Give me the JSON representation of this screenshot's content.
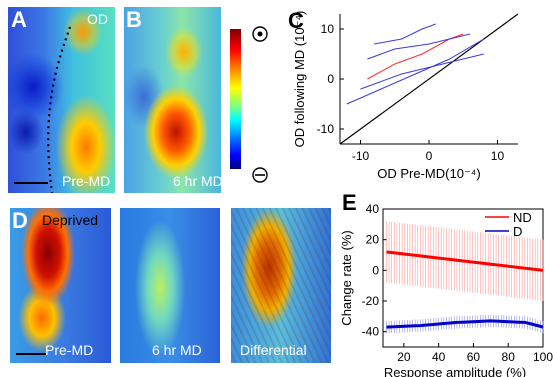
{
  "panels": {
    "A": {
      "letter": "A",
      "top_label": "OD",
      "bottom_label": "Pre-MD"
    },
    "B": {
      "letter": "B",
      "bottom_label": "6 hr MD"
    },
    "C": {
      "letter": "C"
    },
    "D": {
      "letter": "D",
      "labels": [
        "Deprived",
        "Pre-MD",
        "6 hr MD",
        "Differential"
      ]
    },
    "E": {
      "letter": "E"
    }
  },
  "colorbar": {
    "top_symbol": "+",
    "bottom_symbol": "−",
    "colors": [
      "#7f0000",
      "#ff0000",
      "#ff8000",
      "#ffff00",
      "#80ff80",
      "#00ffff",
      "#0080ff",
      "#0000ff",
      "#00007f"
    ]
  },
  "chart_data": [
    {
      "type": "line",
      "panel": "C",
      "xlabel": "OD Pre-MD(10⁻⁴)",
      "ylabel": "OD following MD (10⁻⁴)",
      "xlim": [
        -13,
        13
      ],
      "ylim": [
        -13,
        13
      ],
      "xticks": [
        -10,
        0,
        10
      ],
      "yticks": [
        -10,
        0,
        10
      ],
      "series": [
        {
          "color": "#000000",
          "x": [
            -13,
            13
          ],
          "y": [
            -13,
            13
          ]
        },
        {
          "color": "#ff3030",
          "x": [
            -9,
            -5,
            -1,
            3,
            5
          ],
          "y": [
            0,
            3,
            5,
            8,
            9
          ]
        },
        {
          "color": "#3a3ae0",
          "x": [
            -8,
            -4,
            -1,
            1
          ],
          "y": [
            7,
            8,
            10,
            11
          ]
        },
        {
          "color": "#3a3ae0",
          "x": [
            -9,
            -5,
            0,
            6
          ],
          "y": [
            4,
            6,
            7,
            9
          ]
        },
        {
          "color": "#3a3ae0",
          "x": [
            -12,
            -7,
            -2,
            3,
            8
          ],
          "y": [
            -5,
            -2,
            1,
            4,
            8
          ]
        },
        {
          "color": "#3a3ae0",
          "x": [
            -10,
            -4,
            2,
            8
          ],
          "y": [
            -2,
            1,
            3,
            5
          ]
        }
      ]
    },
    {
      "type": "line",
      "panel": "E",
      "xlabel": "Response amplitude (%)",
      "ylabel": "Change rate (%)",
      "xlim": [
        8,
        100
      ],
      "ylim": [
        -50,
        40
      ],
      "xticks": [
        20,
        40,
        60,
        80,
        100
      ],
      "yticks": [
        -40,
        -20,
        0,
        20,
        40
      ],
      "legend": "top-right",
      "series": [
        {
          "name": "ND",
          "color": "#ff0000",
          "x": [
            10,
            100
          ],
          "y": [
            12,
            0
          ],
          "err": 20
        },
        {
          "name": "D",
          "color": "#0000cc",
          "x": [
            10,
            30,
            50,
            70,
            90,
            100
          ],
          "y": [
            -37,
            -36,
            -34,
            -33,
            -34,
            -37
          ],
          "err": 4
        }
      ]
    }
  ]
}
